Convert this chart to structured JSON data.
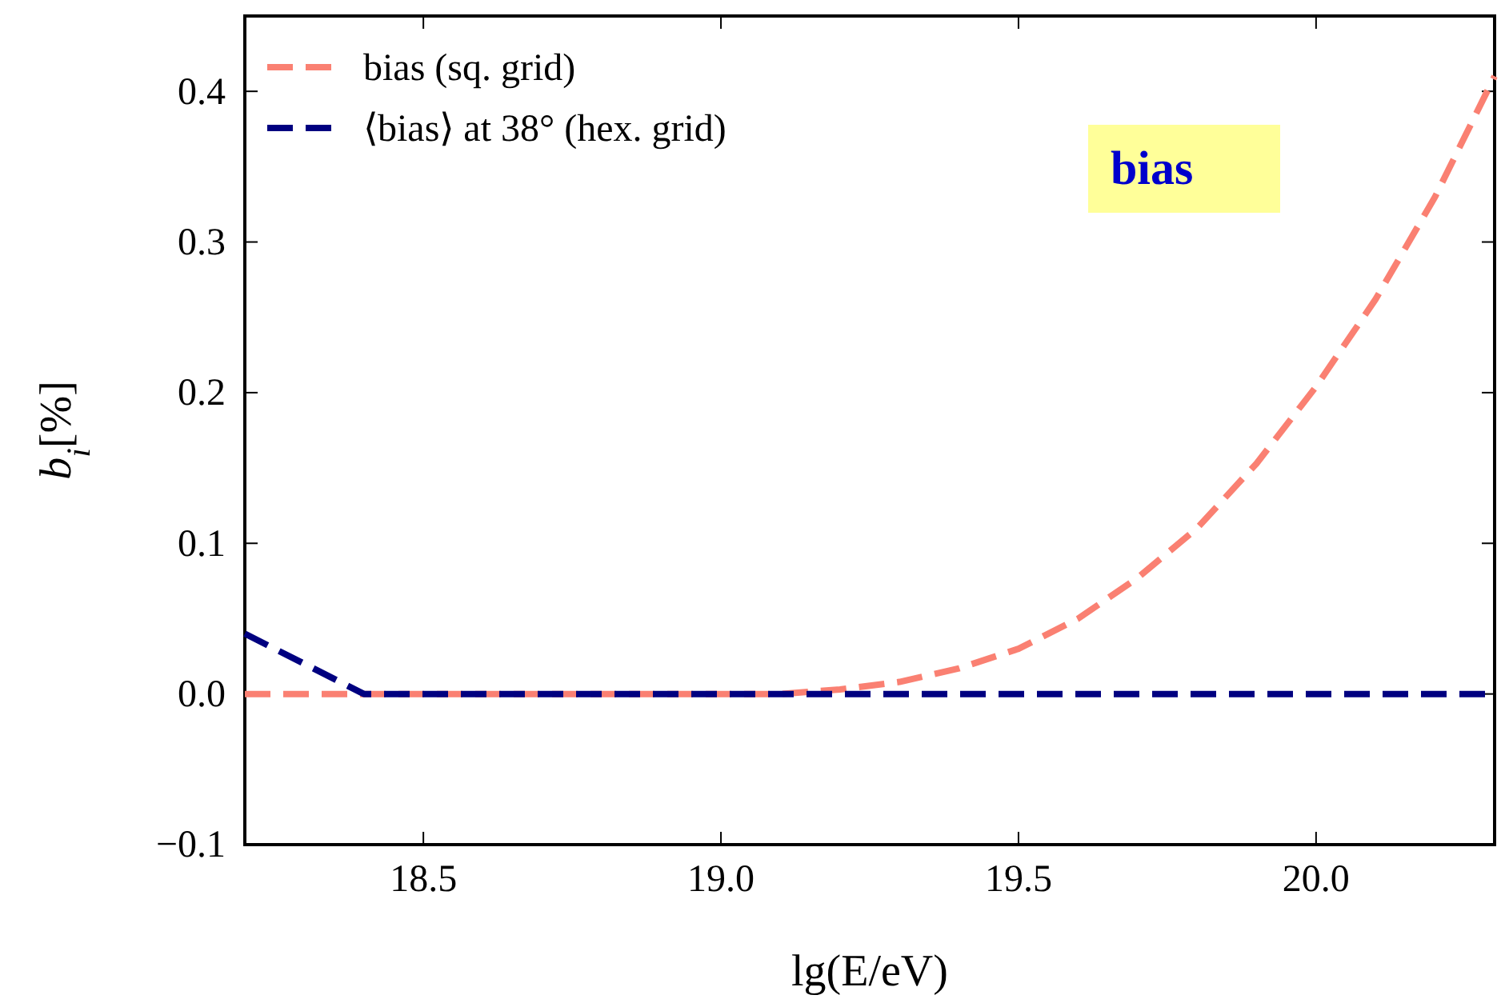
{
  "chart_data": {
    "type": "line",
    "xlabel": "lg(E/eV)",
    "ylabel": "b$_{i}$[%]",
    "xlim": [
      18.2,
      20.3
    ],
    "ylim": [
      -0.1,
      0.45
    ],
    "xticks": [
      18.5,
      {
        "value": 19,
        "label": "19.0"
      },
      19.5,
      {
        "value": 20,
        "label": "20.0"
      }
    ],
    "yticks": [
      {
        "value": -0.1,
        "label": "−0.1"
      },
      {
        "value": 0,
        "label": "0.0"
      },
      0.1,
      0.2,
      0.3,
      0.4
    ],
    "grid": false,
    "legend": "top left",
    "line_style": "dashed",
    "marker": "none",
    "annotations": [
      "bias"
    ],
    "series": [
      {
        "name": "bias (sq. grid)",
        "color": "#fa8072",
        "x": [
          18.2,
          18.6,
          19.0,
          19.1,
          19.2,
          19.3,
          19.4,
          19.5,
          19.6,
          19.7,
          19.8,
          19.9,
          20.0,
          20.1,
          20.2,
          20.3
        ],
        "values": [
          0,
          0,
          0,
          0,
          0.003,
          0.008,
          0.017,
          0.03,
          0.05,
          0.077,
          0.11,
          0.153,
          0.204,
          0.262,
          0.33,
          0.41
        ]
      },
      {
        "name": "⟨bias⟩ at 38° (hex. grid)",
        "color": "#000080",
        "x": [
          18.2,
          18.4,
          20.3
        ],
        "values": [
          0.04,
          0,
          0
        ]
      }
    ]
  }
}
